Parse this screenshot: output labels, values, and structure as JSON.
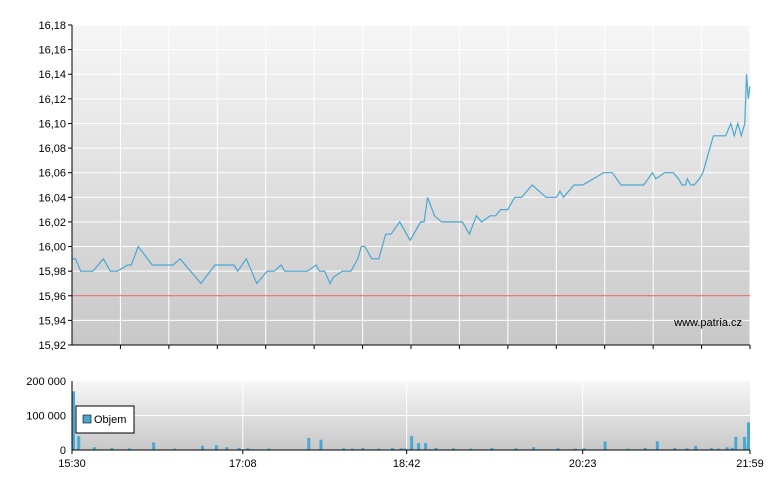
{
  "watermark": "www.patria.cz",
  "colors": {
    "price_line": "#4aa7d2",
    "reference_line": "#e05a5a",
    "volume_bar": "#4aa7d2",
    "grid": "#ffffff",
    "axis": "#000000"
  },
  "chart_data": [
    {
      "type": "line",
      "title": "",
      "xlabel": "",
      "ylabel": "",
      "ylim": [
        15.92,
        16.18
      ],
      "yticks": [
        "16,18",
        "16,16",
        "16,14",
        "16,12",
        "16,10",
        "16,08",
        "16,06",
        "16,04",
        "16,02",
        "16,00",
        "15,98",
        "15,96",
        "15,94",
        "15,92"
      ],
      "reference_value": 15.96,
      "grid": true,
      "series": [
        {
          "x": [
            "15:30",
            "15:32",
            "15:35",
            "15:42",
            "15:48",
            "15:52",
            "15:56",
            "16:02",
            "16:04",
            "16:08",
            "16:16",
            "16:23",
            "16:28",
            "16:32",
            "16:44",
            "16:52",
            "16:58",
            "17:00",
            "17:03",
            "17:05",
            "17:10",
            "17:16",
            "17:22",
            "17:26",
            "17:30",
            "17:32",
            "17:35",
            "17:45",
            "17:50",
            "17:52",
            "17:55",
            "17:58",
            "18:00",
            "18:05",
            "18:10",
            "18:14",
            "18:16",
            "18:18",
            "18:22",
            "18:25",
            "18:26",
            "18:28",
            "18:30",
            "18:33",
            "18:38",
            "18:42",
            "18:44",
            "18:50",
            "18:52",
            "18:54",
            "18:58",
            "19:02",
            "19:08",
            "19:14",
            "19:18",
            "19:22",
            "19:25",
            "19:30",
            "19:33",
            "19:36",
            "19:40",
            "19:44",
            "19:48",
            "19:54",
            "20:02",
            "20:08",
            "20:10",
            "20:12",
            "20:18",
            "20:23",
            "20:35",
            "20:40",
            "20:45",
            "20:48",
            "20:52",
            "20:56",
            "20:58",
            "21:03",
            "21:05",
            "21:10",
            "21:15",
            "21:18",
            "21:20",
            "21:22",
            "21:23",
            "21:25",
            "21:27",
            "21:30",
            "21:32",
            "21:34",
            "21:36",
            "21:38",
            "21:40",
            "21:45",
            "21:48",
            "21:50",
            "21:52",
            "21:54",
            "21:56",
            "21:57",
            "21:58",
            "21:59"
          ],
          "values": [
            15.99,
            15.99,
            15.98,
            15.98,
            15.99,
            15.98,
            15.98,
            15.985,
            15.985,
            16.0,
            15.985,
            15.985,
            15.985,
            15.99,
            15.97,
            15.985,
            15.985,
            15.985,
            15.985,
            15.98,
            15.99,
            15.97,
            15.98,
            15.98,
            15.985,
            15.98,
            15.98,
            15.98,
            15.985,
            15.98,
            15.98,
            15.97,
            15.975,
            15.98,
            15.98,
            15.99,
            16.0,
            16.0,
            15.99,
            15.99,
            15.99,
            16.0,
            16.01,
            16.01,
            16.02,
            16.01,
            16.005,
            16.02,
            16.02,
            16.04,
            16.025,
            16.02,
            16.02,
            16.02,
            16.01,
            16.025,
            16.02,
            16.025,
            16.025,
            16.03,
            16.03,
            16.04,
            16.04,
            16.05,
            16.04,
            16.04,
            16.045,
            16.04,
            16.05,
            16.05,
            16.06,
            16.06,
            16.05,
            16.05,
            16.05,
            16.05,
            16.05,
            16.06,
            16.055,
            16.06,
            16.06,
            16.055,
            16.05,
            16.05,
            16.055,
            16.05,
            16.05,
            16.055,
            16.06,
            16.07,
            16.08,
            16.09,
            16.09,
            16.09,
            16.1,
            16.09,
            16.1,
            16.09,
            16.1,
            16.14,
            16.12,
            16.13
          ]
        }
      ]
    },
    {
      "type": "bar",
      "title": "",
      "xlabel": "",
      "ylabel": "",
      "ylim": [
        0,
        200000
      ],
      "yticks": [
        "200 000",
        "100 000",
        "0"
      ],
      "xticks": [
        "15:30",
        "17:08",
        "18:42",
        "20:23",
        "21:59"
      ],
      "legend": "top-left",
      "series": [
        {
          "name": "Objem",
          "x": [
            "15:30",
            "15:33",
            "15:42",
            "15:52",
            "16:02",
            "16:16",
            "16:28",
            "16:44",
            "16:52",
            "16:58",
            "17:05",
            "17:10",
            "17:22",
            "17:45",
            "17:52",
            "18:05",
            "18:10",
            "18:16",
            "18:25",
            "18:33",
            "18:38",
            "18:40",
            "18:44",
            "18:48",
            "18:52",
            "18:58",
            "19:08",
            "19:18",
            "19:30",
            "19:44",
            "19:54",
            "20:08",
            "20:18",
            "20:23",
            "20:35",
            "20:48",
            "20:58",
            "21:05",
            "21:15",
            "21:22",
            "21:27",
            "21:36",
            "21:40",
            "21:45",
            "21:48",
            "21:50",
            "21:55",
            "21:57",
            "21:59"
          ],
          "values": [
            170000,
            40000,
            8000,
            6000,
            5000,
            22000,
            4000,
            12000,
            14000,
            8000,
            6000,
            5000,
            4000,
            35000,
            30000,
            5000,
            4000,
            6000,
            4000,
            6000,
            5000,
            4000,
            40000,
            20000,
            20000,
            6000,
            5000,
            4000,
            6000,
            5000,
            8000,
            5000,
            4000,
            5000,
            25000,
            4000,
            6000,
            25000,
            6000,
            5000,
            12000,
            6000,
            4000,
            8000,
            6000,
            38000,
            38000,
            15000,
            80000
          ]
        }
      ]
    }
  ]
}
